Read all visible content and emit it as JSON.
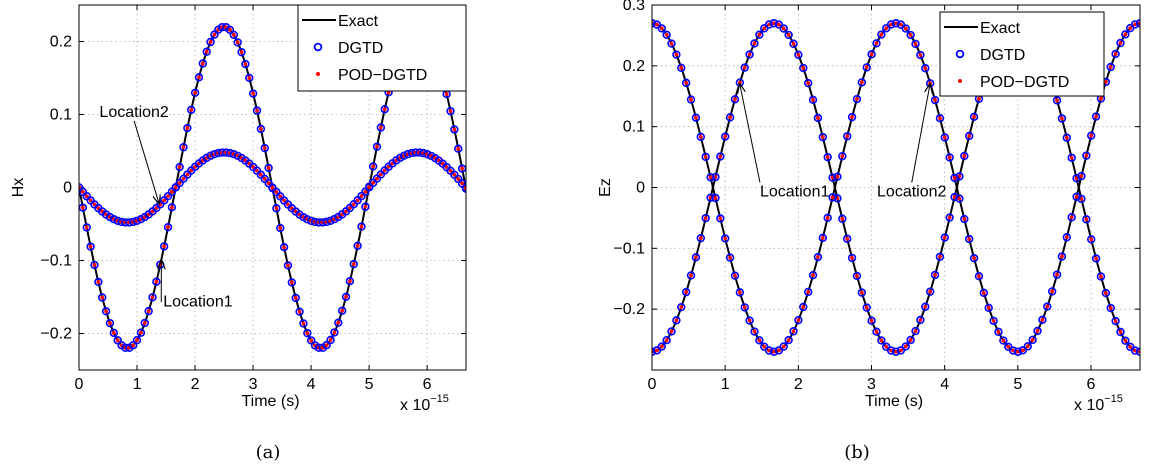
{
  "chart_data": [
    {
      "type": "line",
      "panel_label": "(a)",
      "xlabel": "Time (s)",
      "ylabel": "Hx",
      "x_multiplier_base": "x 10",
      "x_multiplier_exp": "−15",
      "xlim": [
        0,
        6.67
      ],
      "ylim": [
        -0.25,
        0.25
      ],
      "xticks": [
        0,
        1,
        2,
        3,
        4,
        5,
        6
      ],
      "xtick_labels": [
        "0",
        "1",
        "2",
        "3",
        "4",
        "5",
        "6"
      ],
      "yticks": [
        -0.2,
        -0.1,
        0,
        0.1,
        0.2
      ],
      "ytick_labels": [
        "−0.2",
        "−0.1",
        "0",
        "0.1",
        "0.2"
      ],
      "grid": true,
      "legend_position": "top-right",
      "legend": [
        "Exact",
        "DGTD",
        "POD−DGTD"
      ],
      "series": [
        {
          "name": "Exact",
          "style": "solid-line",
          "color": "#000000"
        },
        {
          "name": "DGTD",
          "style": "open-circle",
          "color": "#0000ff"
        },
        {
          "name": "POD−DGTD",
          "style": "dot",
          "color": "#ff0000"
        }
      ],
      "curves": [
        {
          "id": "location1",
          "amplitude": -0.22,
          "period": 3.333,
          "phase": 0,
          "offset": 0
        },
        {
          "id": "location2",
          "amplitude": -0.048,
          "period": 3.333,
          "phase": 0,
          "offset": 0
        }
      ],
      "marker_step": 0.0667,
      "annotations": [
        {
          "text": "Location2",
          "text_x": 0.95,
          "text_y": 0.105,
          "arrow_x": 1.38,
          "arrow_y": -0.022
        },
        {
          "text": "Location1",
          "text_x": 2.05,
          "text_y": -0.155,
          "arrow_x": 1.42,
          "arrow_y": -0.1
        }
      ]
    },
    {
      "type": "line",
      "panel_label": "(b)",
      "xlabel": "Time (s)",
      "ylabel": "Ez",
      "x_multiplier_base": "x 10",
      "x_multiplier_exp": "−15",
      "xlim": [
        0,
        6.67
      ],
      "ylim": [
        -0.3,
        0.3
      ],
      "xticks": [
        0,
        1,
        2,
        3,
        4,
        5,
        6
      ],
      "xtick_labels": [
        "0",
        "1",
        "2",
        "3",
        "4",
        "5",
        "6"
      ],
      "yticks": [
        -0.2,
        -0.1,
        0,
        0.1,
        0.2,
        0.3
      ],
      "ytick_labels": [
        "−0.2",
        "−0.1",
        "0",
        "0.1",
        "0.2",
        "0.3"
      ],
      "grid": true,
      "legend_position": "top-right",
      "legend": [
        "Exact",
        "DGTD",
        "POD−DGTD"
      ],
      "series": [
        {
          "name": "Exact",
          "style": "solid-line",
          "color": "#000000"
        },
        {
          "name": "DGTD",
          "style": "open-circle",
          "color": "#0000ff"
        },
        {
          "name": "POD−DGTD",
          "style": "dot",
          "color": "#ff0000"
        }
      ],
      "curves": [
        {
          "id": "location1",
          "amplitude": -0.27,
          "period": 3.333,
          "phase": 0,
          "offset": 0,
          "func": "cos"
        },
        {
          "id": "location2",
          "amplitude": 0.27,
          "period": 3.333,
          "phase": 0,
          "offset": 0,
          "func": "cos"
        }
      ],
      "marker_step": 0.0667,
      "annotations": [
        {
          "text": "Location1",
          "text_x": 1.95,
          "text_y": -0.005,
          "arrow_x": 1.2,
          "arrow_y": 0.17
        },
        {
          "text": "Location2",
          "text_x": 3.55,
          "text_y": -0.005,
          "arrow_x": 3.8,
          "arrow_y": 0.17
        }
      ]
    }
  ]
}
